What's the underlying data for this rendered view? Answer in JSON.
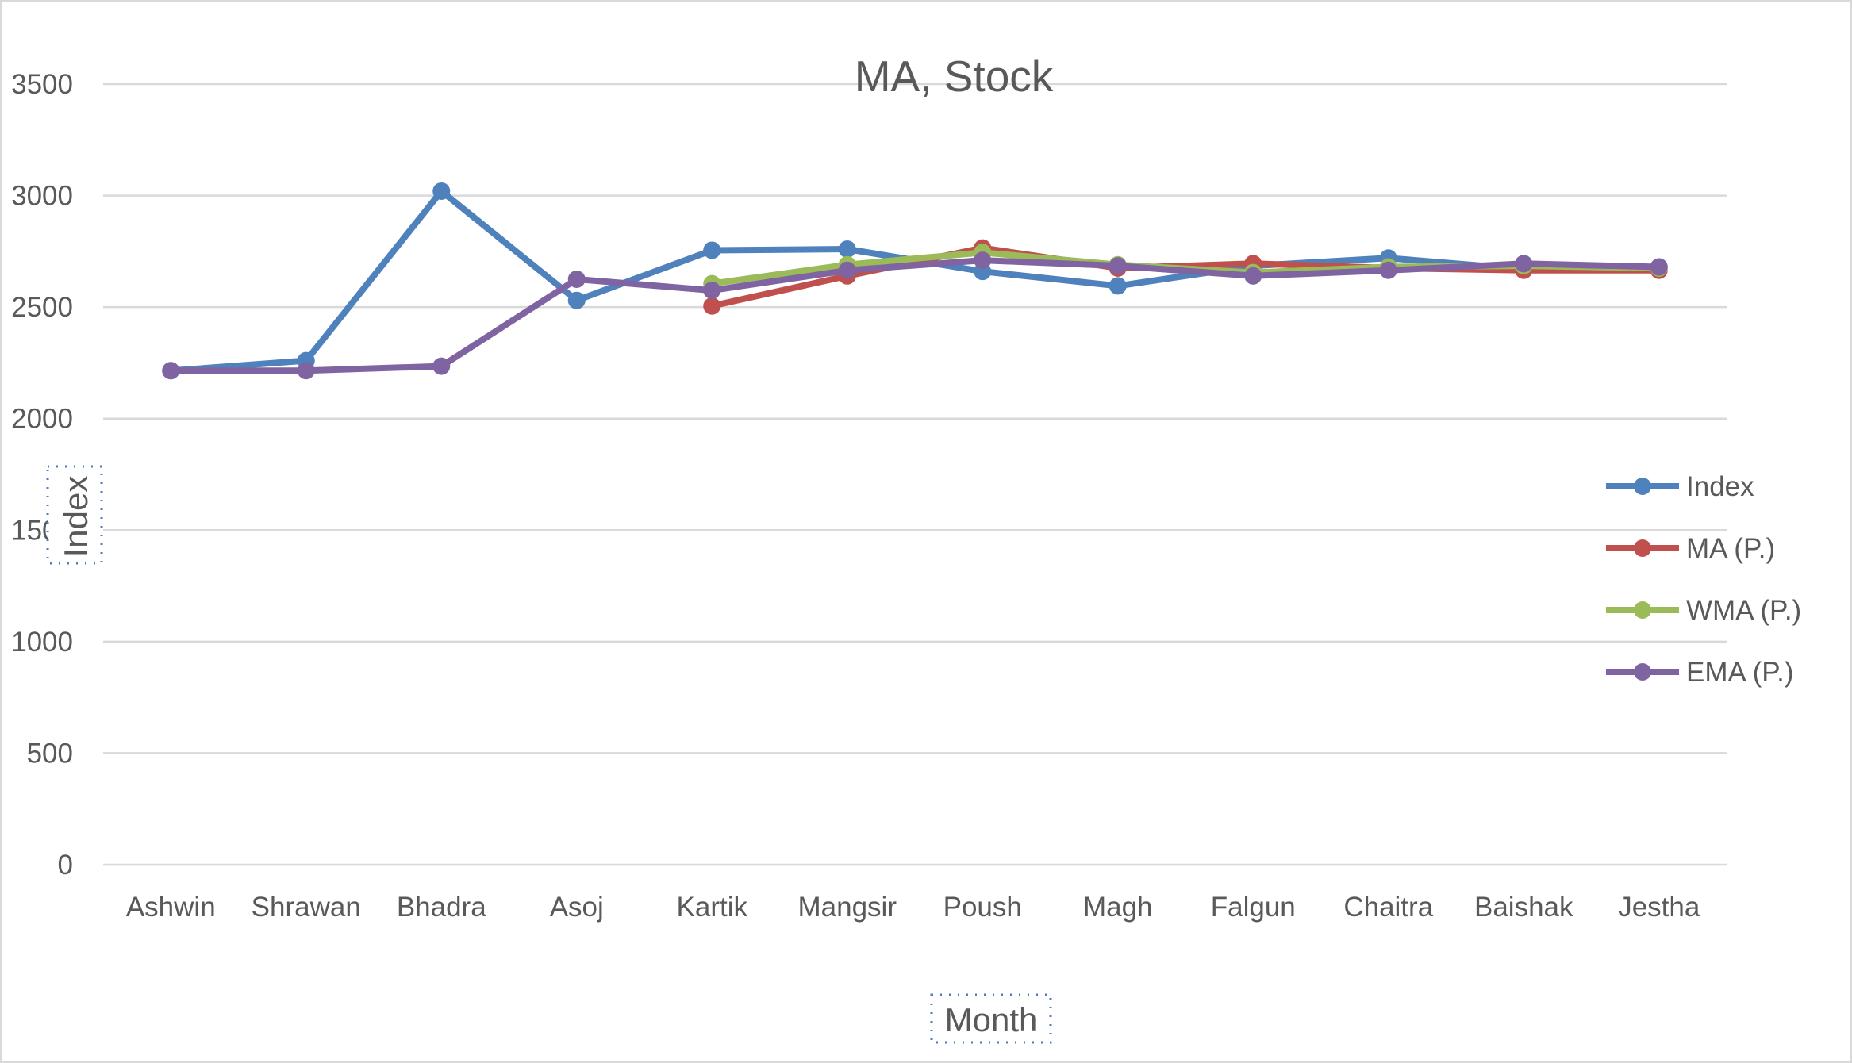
{
  "chart_data": {
    "type": "line",
    "title": "MA, Stock",
    "xlabel": "Month",
    "ylabel": "Index",
    "categories": [
      "Ashwin",
      "Shrawan",
      "Bhadra",
      "Asoj",
      "Kartik",
      "Mangsir",
      "Poush",
      "Magh",
      "Falgun",
      "Chaitra",
      "Baishak",
      "Jestha"
    ],
    "ylim": [
      0,
      3500
    ],
    "yticks": [
      "0",
      "500",
      "1000",
      "1500",
      "2000",
      "2500",
      "3000",
      "3500"
    ],
    "grid": true,
    "legend_position": "right",
    "series": [
      {
        "name": "Index",
        "color": "#4f81bd",
        "values": [
          2215,
          2260,
          3020,
          2530,
          2755,
          2760,
          2660,
          2595,
          2685,
          2720,
          2670,
          2680
        ]
      },
      {
        "name": "MA (P.)",
        "color": "#c0504d",
        "values": [
          null,
          null,
          null,
          null,
          2505,
          2640,
          2765,
          2675,
          2695,
          2675,
          2665,
          2665
        ]
      },
      {
        "name": "WMA (P.)",
        "color": "#9bbb59",
        "values": [
          null,
          null,
          null,
          null,
          2605,
          2690,
          2745,
          2690,
          2655,
          2680,
          2685,
          2675
        ]
      },
      {
        "name": "EMA (P.)",
        "color": "#8064a2",
        "values": [
          2215,
          2215,
          2235,
          2625,
          2575,
          2665,
          2710,
          2685,
          2640,
          2665,
          2695,
          2680
        ]
      }
    ]
  }
}
